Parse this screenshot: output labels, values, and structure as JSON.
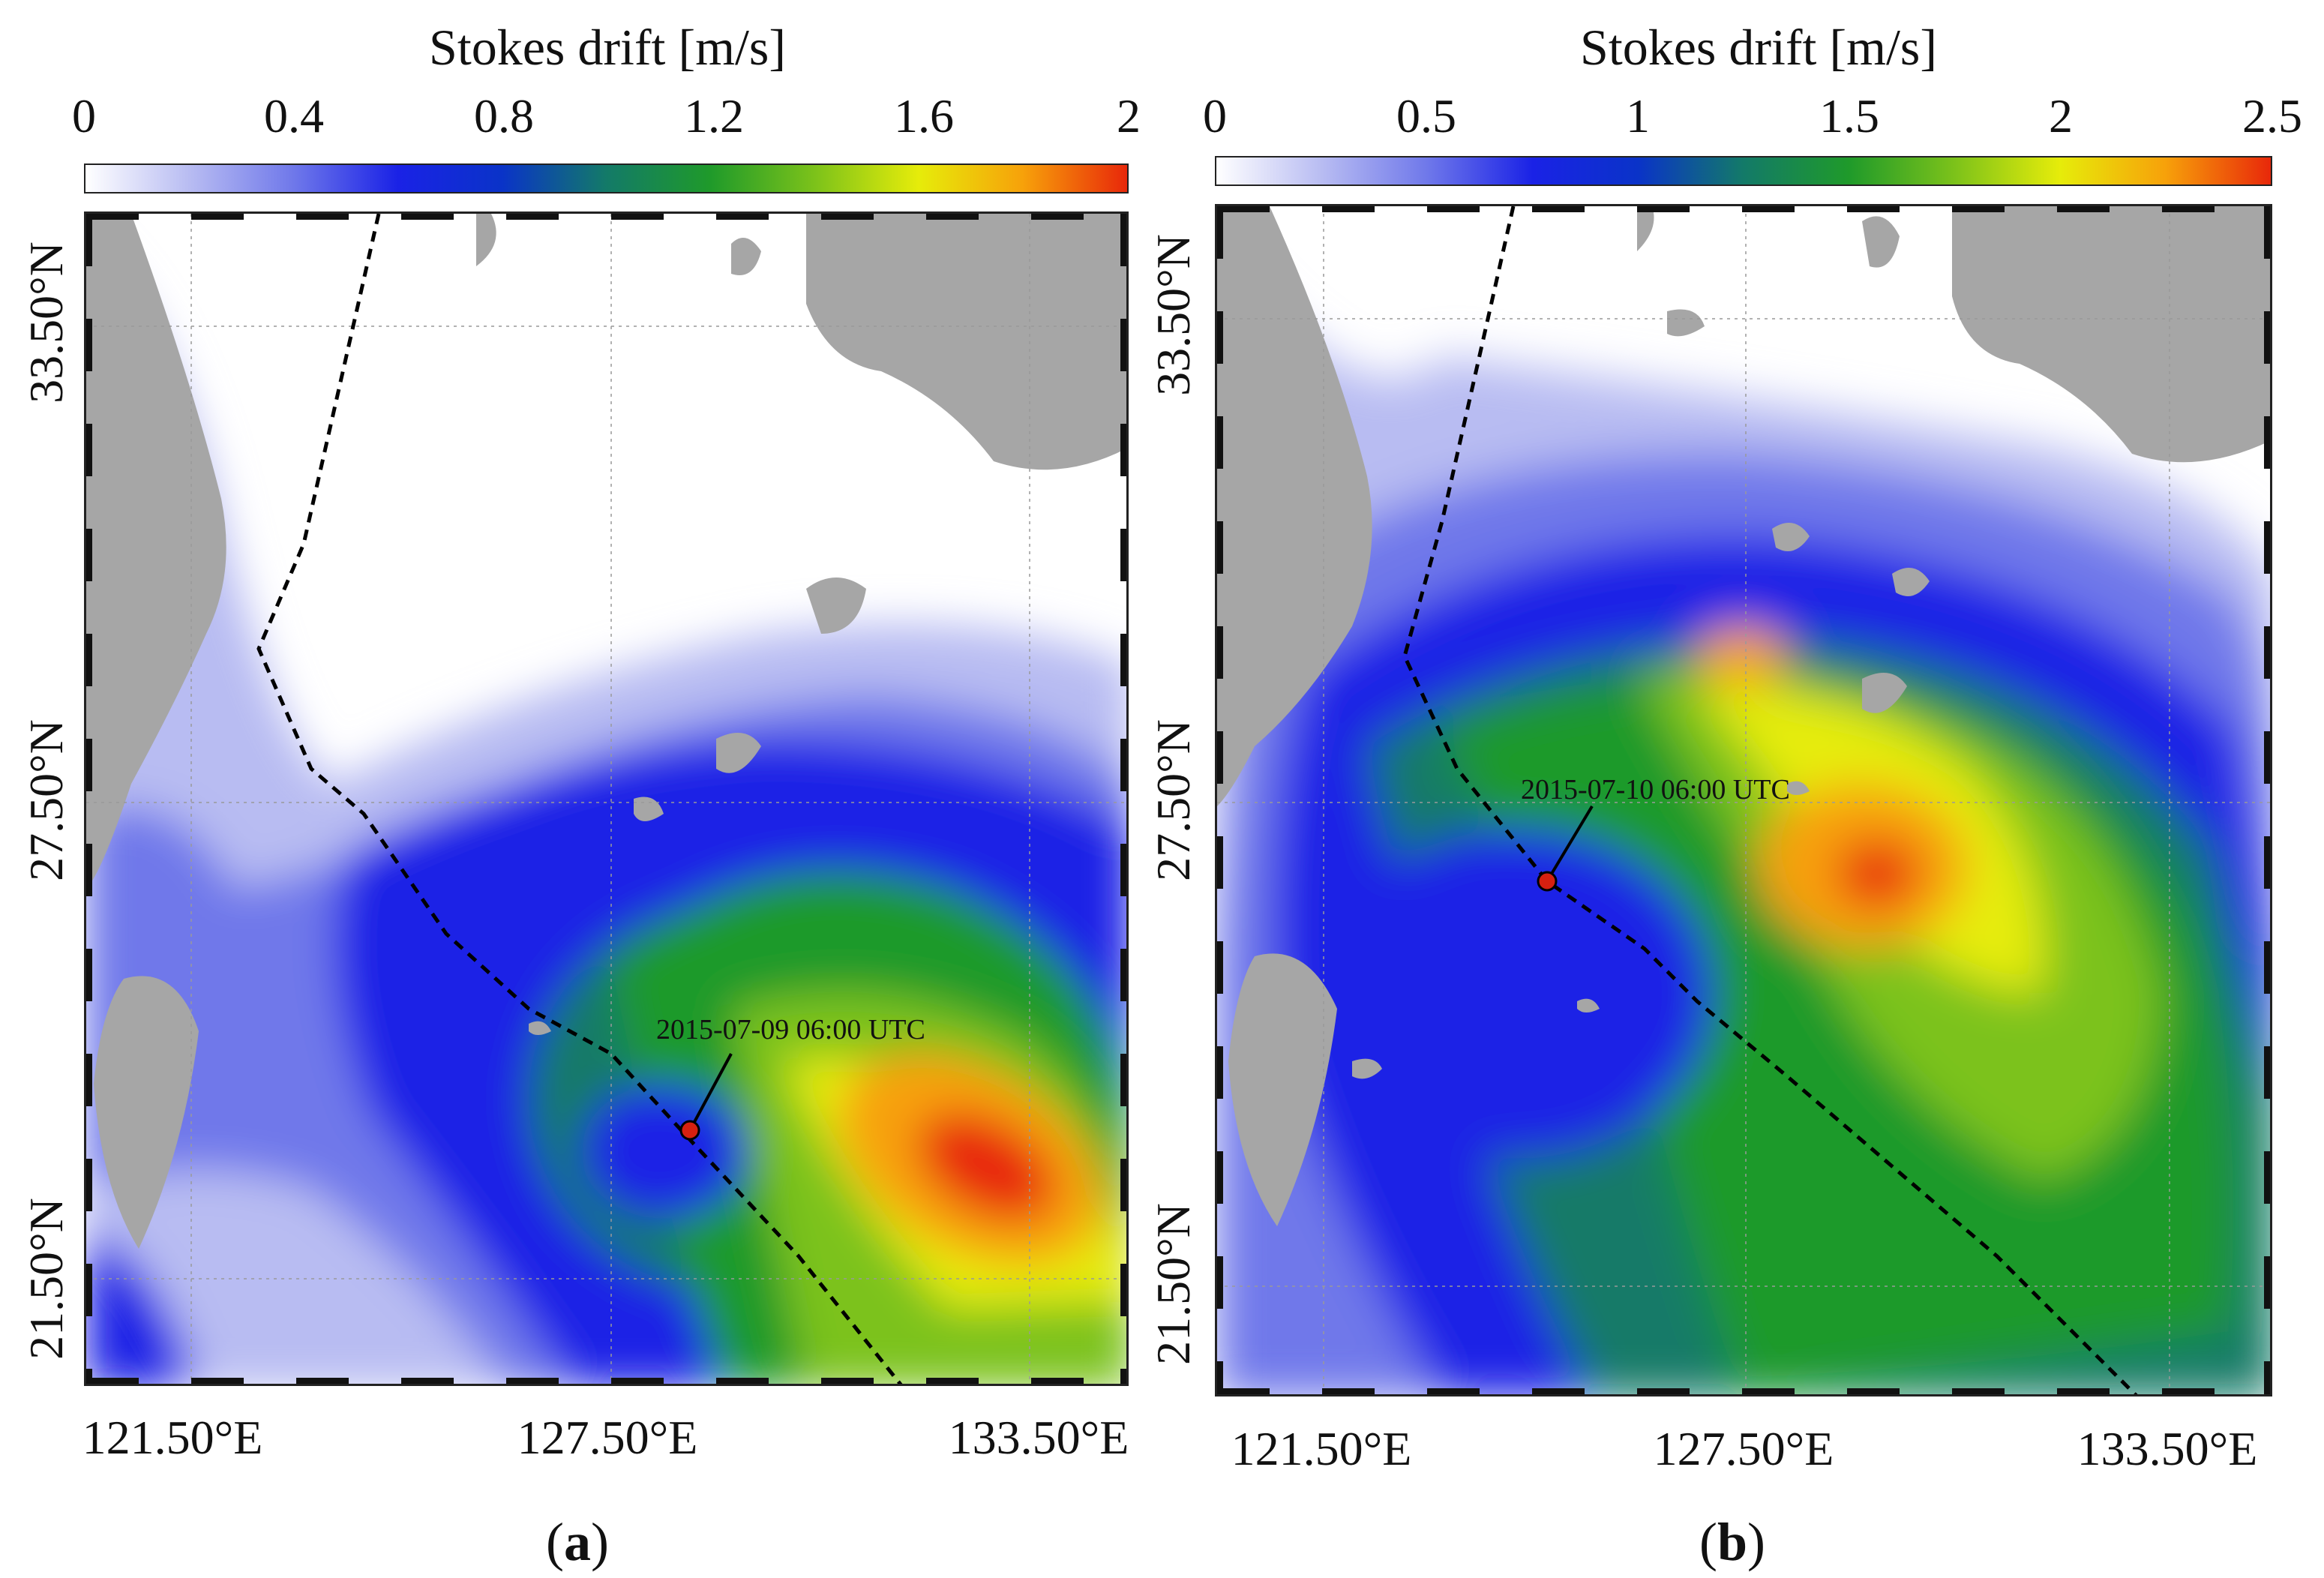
{
  "panels": [
    {
      "id": "a",
      "subfigure_label": "a",
      "colorbar": {
        "title": "Stokes drift [m/s]",
        "ticks": [
          "0",
          "0.4",
          "0.8",
          "1.2",
          "1.6",
          "2"
        ],
        "range": [
          0,
          2
        ]
      },
      "lon_labels": [
        "121.50°E",
        "127.50°E",
        "133.50°E"
      ],
      "lat_labels": [
        "33.50°N",
        "27.50°N",
        "21.50°N"
      ],
      "typhoon_marker_label": "2015-07-09 06:00 UTC"
    },
    {
      "id": "b",
      "subfigure_label": "b",
      "colorbar": {
        "title": "Stokes drift [m/s]",
        "ticks": [
          "0",
          "0.5",
          "1",
          "1.5",
          "2",
          "2.5"
        ],
        "range": [
          0,
          2.5
        ]
      },
      "lon_labels": [
        "121.50°E",
        "127.50°E",
        "133.50°E"
      ],
      "lat_labels": [
        "33.50°N",
        "27.50°N",
        "21.50°N"
      ],
      "typhoon_marker_label": "2015-07-10 06:00 UTC"
    }
  ],
  "colormap": [
    "#ffffff",
    "#b8bcf2",
    "#6f78ea",
    "#1a22e6",
    "#0a33c8",
    "#137a68",
    "#1f9a2a",
    "#7cc21a",
    "#e6ec0a",
    "#f7a10a",
    "#e8280a"
  ],
  "colors": {
    "land": "#a6a6a6",
    "track": "#000000",
    "marker": "#d62010"
  }
}
